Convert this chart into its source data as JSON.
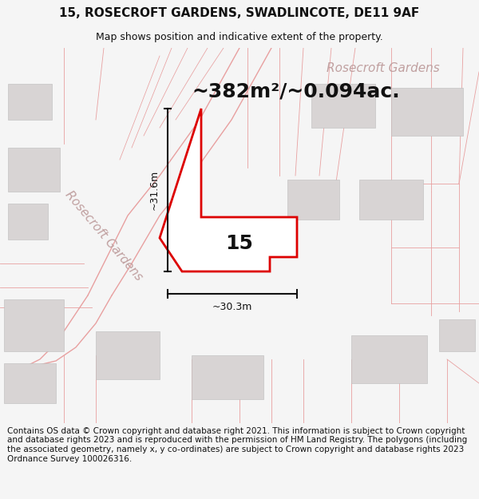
{
  "title": "15, ROSECROFT GARDENS, SWADLINCOTE, DE11 9AF",
  "subtitle": "Map shows position and indicative extent of the property.",
  "area_text": "~382m²/~0.094ac.",
  "label_15": "15",
  "dim_vertical": "~31.6m",
  "dim_horizontal": "~30.3m",
  "road_label_diag": "Rosecroft Gardens",
  "road_label_top": "Rosecroft Gardens",
  "footer": "Contains OS data © Crown copyright and database right 2021. This information is subject to Crown copyright and database rights 2023 and is reproduced with the permission of HM Land Registry. The polygons (including the associated geometry, namely x, y co-ordinates) are subject to Crown copyright and database rights 2023 Ordnance Survey 100026316.",
  "bg_color": "#f5f5f5",
  "map_bg": "#ffffff",
  "plot_color": "#dd0000",
  "building_color": "#d8d4d4",
  "road_line_color": "#e8a0a0",
  "road_fill_color": "#f0e8e8",
  "dim_color": "#111111",
  "text_color": "#111111",
  "road_text_color": "#c0a0a0",
  "area_fontsize": 18,
  "title_fontsize": 11,
  "subtitle_fontsize": 9,
  "label_fontsize": 18,
  "dim_fontsize": 9,
  "road_label_fontsize": 11,
  "footer_fontsize": 7.5
}
